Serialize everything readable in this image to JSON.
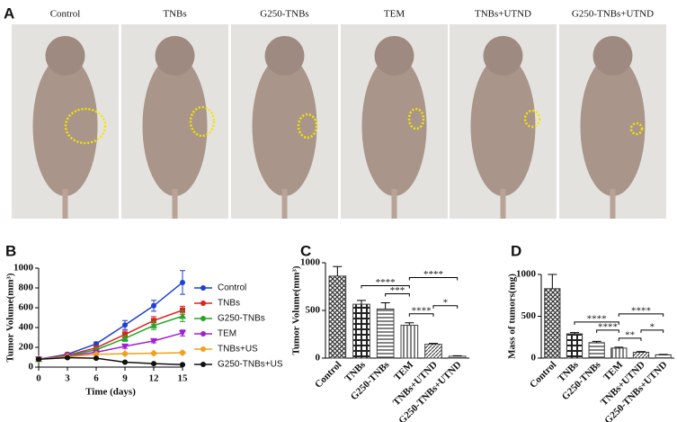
{
  "figure": {
    "panel_labels": [
      "A",
      "B",
      "C",
      "D"
    ],
    "photo_labels": [
      "Control",
      "TNBs",
      "G250-TNBs",
      "TEM",
      "TNBs+UTND",
      "G250-TNBs+UTND"
    ]
  },
  "chart_data": [
    {
      "type": "line",
      "xlabel": "Time (days)",
      "ylabel": "Tumor Volume(mm³)",
      "x": [
        0,
        3,
        6,
        9,
        12,
        15
      ],
      "xlim": [
        0,
        15
      ],
      "xticks": [
        0,
        3,
        6,
        9,
        12,
        15
      ],
      "ylim": [
        0,
        1000
      ],
      "yticks": [
        0,
        200,
        400,
        600,
        800,
        1000
      ],
      "legend": "right",
      "series": [
        {
          "name": "Control",
          "color": "#1f3fd6",
          "values": [
            80,
            130,
            235,
            425,
            620,
            855
          ],
          "errors": [
            10,
            15,
            20,
            45,
            55,
            120
          ]
        },
        {
          "name": "TNBs",
          "color": "#e02020",
          "values": [
            80,
            120,
            195,
            330,
            470,
            575
          ],
          "errors": [
            10,
            12,
            20,
            35,
            40,
            40
          ]
        },
        {
          "name": "G250-TNBs",
          "color": "#22a822",
          "values": [
            80,
            115,
            175,
            290,
            420,
            515
          ],
          "errors": [
            10,
            12,
            20,
            30,
            40,
            55
          ]
        },
        {
          "name": "TEM",
          "color": "#a020d0",
          "values": [
            80,
            110,
            150,
            210,
            265,
            345
          ],
          "errors": [
            8,
            10,
            15,
            20,
            20,
            30
          ]
        },
        {
          "name": "TNBs+US",
          "color": "#f0a020",
          "values": [
            80,
            105,
            130,
            135,
            140,
            145
          ],
          "errors": [
            8,
            10,
            10,
            10,
            10,
            12
          ]
        },
        {
          "name": "G250-TNBs+US",
          "color": "#111111",
          "values": [
            80,
            95,
            90,
            50,
            35,
            25
          ],
          "errors": [
            8,
            8,
            8,
            6,
            5,
            5
          ]
        }
      ]
    },
    {
      "type": "bar",
      "ylabel": "Tumor Volume(mm³)",
      "color": "#444444",
      "categories": [
        "Control",
        "TNBs",
        "G250-TNBs",
        "TEM",
        "TNBs+UTND",
        "G250-TNBs+UTND"
      ],
      "values": [
        860,
        565,
        515,
        345,
        145,
        20
      ],
      "errors": [
        100,
        40,
        65,
        25,
        10,
        5
      ],
      "ylim": [
        0,
        1000
      ],
      "yticks": [
        0,
        500,
        1000
      ],
      "annotations": [
        {
          "from": "TEM",
          "to": "TNBs+UTND",
          "text": "****"
        },
        {
          "from": "TNBs+UTND",
          "to": "G250-TNBs+UTND",
          "text": "*"
        },
        {
          "from": "G250-TNBs",
          "to": "TEM",
          "text": "***"
        },
        {
          "from": "TNBs",
          "to": "TEM",
          "text": "****"
        },
        {
          "from": "TEM",
          "to": "G250-TNBs+UTND",
          "text": "****"
        }
      ]
    },
    {
      "type": "bar",
      "ylabel": "Mass of tumors(mg)",
      "color": "#444444",
      "categories": [
        "Control",
        "TNBs",
        "G250-TNBs",
        "TEM",
        "TNBs+UTND",
        "G250-TNBs+UTND"
      ],
      "values": [
        830,
        290,
        185,
        120,
        70,
        40
      ],
      "errors": [
        170,
        15,
        15,
        10,
        8,
        5
      ],
      "ylim": [
        0,
        1000
      ],
      "yticks": [
        0,
        500,
        1000
      ],
      "annotations": [
        {
          "from": "TEM",
          "to": "TNBs+UTND",
          "text": "**"
        },
        {
          "from": "TNBs+UTND",
          "to": "G250-TNBs+UTND",
          "text": "*"
        },
        {
          "from": "G250-TNBs",
          "to": "TEM",
          "text": "****"
        },
        {
          "from": "TNBs",
          "to": "TEM",
          "text": "****"
        },
        {
          "from": "TEM",
          "to": "G250-TNBs+UTND",
          "text": "****"
        }
      ]
    }
  ]
}
